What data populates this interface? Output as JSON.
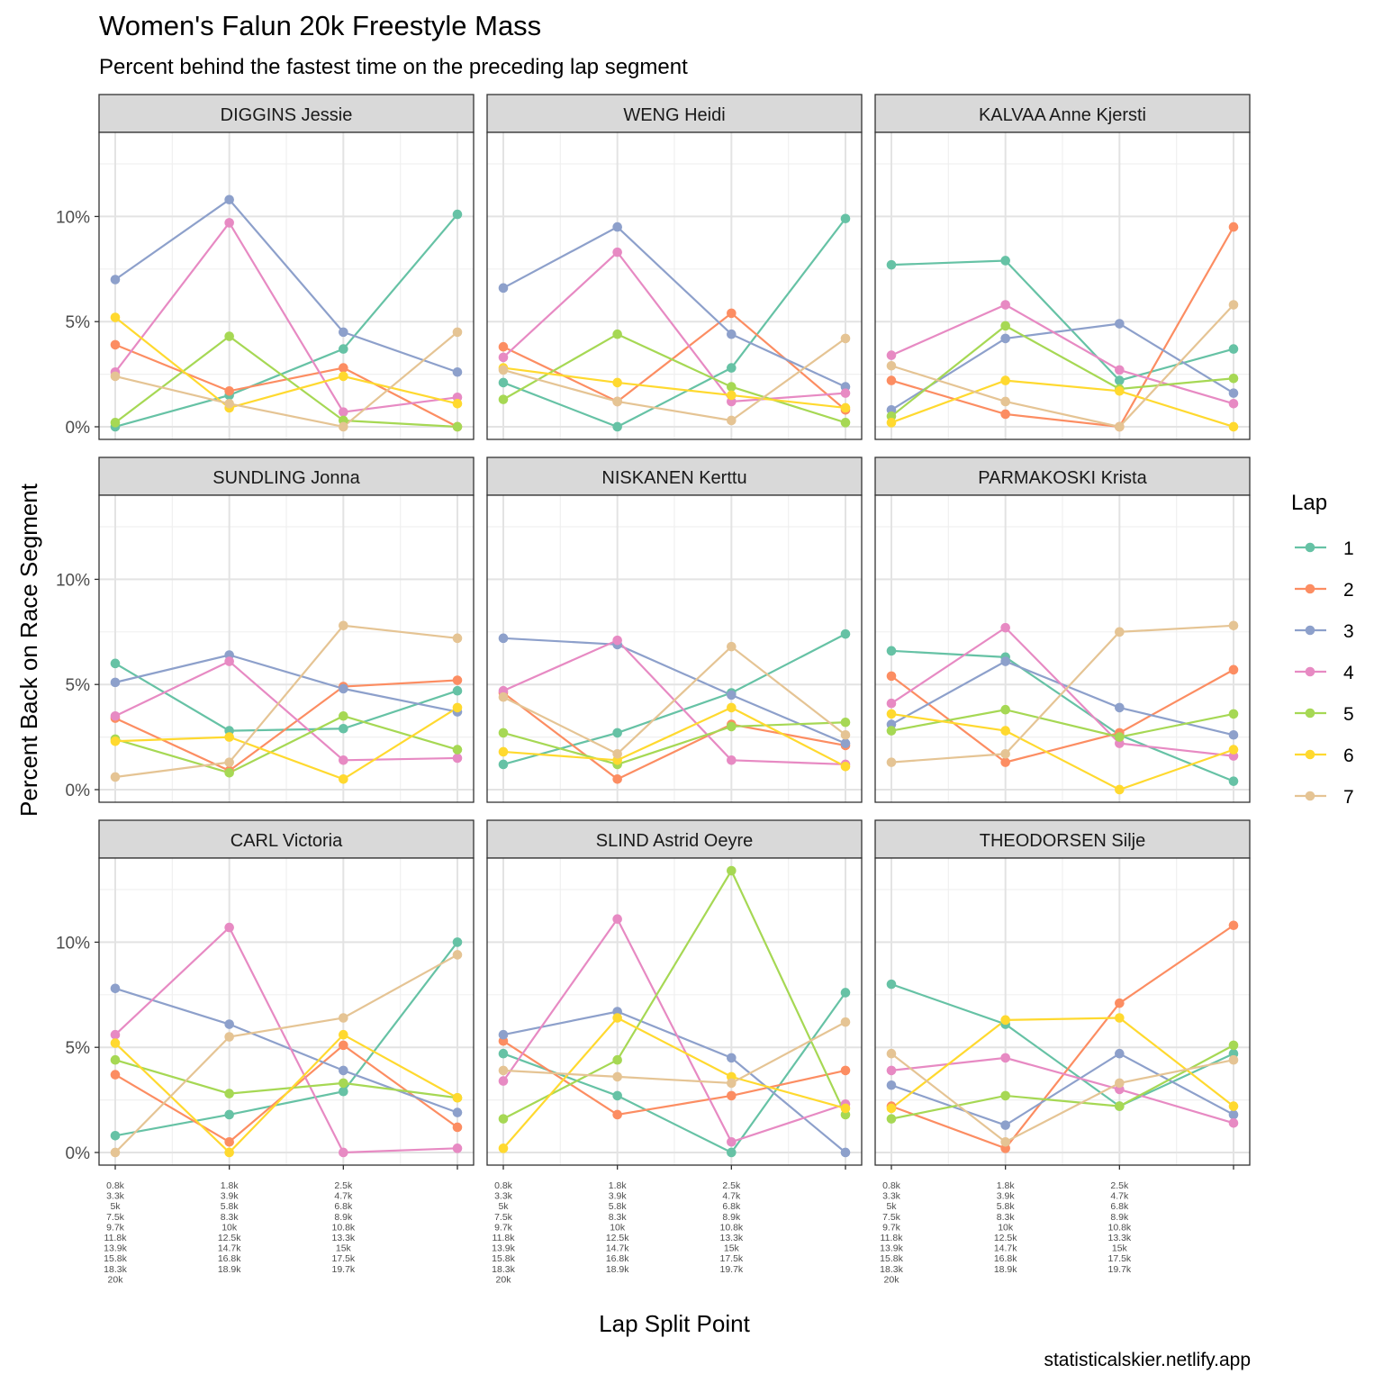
{
  "title": "Women's Falun 20k Freestyle Mass",
  "subtitle": "Percent behind the fastest time on the preceding lap segment",
  "xlabel": "Lap Split Point",
  "ylabel": "Percent Back on Race Segment",
  "caption": "statisticalskier.netlify.app",
  "legend_title": "Lap",
  "colors": {
    "1": "#66c2a5",
    "2": "#fc8d62",
    "3": "#8da0cb",
    "4": "#e78ac3",
    "5": "#a6d854",
    "6": "#ffd92f",
    "7": "#e5c494"
  },
  "chart_data": {
    "type": "line",
    "facets": "wrap 3x3",
    "laps": [
      "1",
      "2",
      "3",
      "4",
      "5",
      "6",
      "7"
    ],
    "y_ticks": [
      "0%",
      "5%",
      "10%"
    ],
    "y_tick_values": [
      0,
      5,
      10
    ],
    "ylim": [
      -0.6,
      14.0
    ],
    "x_points": [
      1,
      2,
      3,
      4
    ],
    "x_tick_labels": [
      [
        "0.8k",
        "3.3k",
        "5k",
        "7.5k",
        "9.7k",
        "11.8k",
        "13.9k",
        "15.8k",
        "18.3k",
        "20k"
      ],
      [
        "1.8k",
        "3.9k",
        "5.8k",
        "8.3k",
        "10k",
        "12.5k",
        "14.7k",
        "16.8k",
        "18.9k"
      ],
      [
        "2.5k",
        "4.7k",
        "6.8k",
        "8.9k",
        "10.8k",
        "13.3k",
        "15k",
        "17.5k",
        "19.7k"
      ]
    ],
    "panels": [
      {
        "name": "DIGGINS Jessie",
        "series": {
          "1": [
            0.0,
            1.5,
            3.7,
            10.1
          ],
          "2": [
            3.9,
            1.7,
            2.8,
            0.0
          ],
          "3": [
            7.0,
            10.8,
            4.5,
            2.6
          ],
          "4": [
            2.6,
            9.7,
            0.7,
            1.4
          ],
          "5": [
            0.2,
            4.3,
            0.3,
            0.0
          ],
          "6": [
            5.2,
            0.9,
            2.4,
            1.1
          ],
          "7": [
            2.4,
            1.1,
            0.0,
            4.5
          ]
        }
      },
      {
        "name": "WENG Heidi",
        "series": {
          "1": [
            2.1,
            0.0,
            2.8,
            9.9
          ],
          "2": [
            3.8,
            1.2,
            5.4,
            0.8
          ],
          "3": [
            6.6,
            9.5,
            4.4,
            1.9
          ],
          "4": [
            3.3,
            8.3,
            1.2,
            1.6
          ],
          "5": [
            1.3,
            4.4,
            1.9,
            0.2
          ],
          "6": [
            2.8,
            2.1,
            1.5,
            0.9
          ],
          "7": [
            2.7,
            1.2,
            0.3,
            4.2
          ]
        }
      },
      {
        "name": "KALVAA Anne Kjersti",
        "series": {
          "1": [
            7.7,
            7.9,
            2.2,
            3.7
          ],
          "2": [
            2.2,
            0.6,
            0.0,
            9.5
          ],
          "3": [
            0.8,
            4.2,
            4.9,
            1.6
          ],
          "4": [
            3.4,
            5.8,
            2.7,
            1.1
          ],
          "5": [
            0.5,
            4.8,
            1.8,
            2.3
          ],
          "6": [
            0.2,
            2.2,
            1.7,
            0.0
          ],
          "7": [
            2.9,
            1.2,
            0.0,
            5.8
          ]
        }
      },
      {
        "name": "SUNDLING Jonna",
        "series": {
          "1": [
            6.0,
            2.8,
            2.9,
            4.7
          ],
          "2": [
            3.4,
            0.9,
            4.9,
            5.2
          ],
          "3": [
            5.1,
            6.4,
            4.8,
            3.7
          ],
          "4": [
            3.5,
            6.1,
            1.4,
            1.5
          ],
          "5": [
            2.4,
            0.8,
            3.5,
            1.9
          ],
          "6": [
            2.3,
            2.5,
            0.5,
            3.9
          ],
          "7": [
            0.6,
            1.3,
            7.8,
            7.2
          ]
        }
      },
      {
        "name": "NISKANEN Kerttu",
        "series": {
          "1": [
            1.2,
            2.7,
            4.6,
            7.4
          ],
          "2": [
            4.6,
            0.5,
            3.1,
            2.1
          ],
          "3": [
            7.2,
            6.9,
            4.5,
            2.2
          ],
          "4": [
            4.7,
            7.1,
            1.4,
            1.2
          ],
          "5": [
            2.7,
            1.2,
            3.0,
            3.2
          ],
          "6": [
            1.8,
            1.4,
            3.9,
            1.1
          ],
          "7": [
            4.4,
            1.7,
            6.8,
            2.6
          ]
        }
      },
      {
        "name": "PARMAKOSKI Krista",
        "series": {
          "1": [
            6.6,
            6.3,
            2.6,
            0.4
          ],
          "2": [
            5.4,
            1.3,
            2.7,
            5.7
          ],
          "3": [
            3.1,
            6.1,
            3.9,
            2.6
          ],
          "4": [
            4.1,
            7.7,
            2.2,
            1.6
          ],
          "5": [
            2.8,
            3.8,
            2.5,
            3.6
          ],
          "6": [
            3.6,
            2.8,
            0.0,
            1.9
          ],
          "7": [
            1.3,
            1.7,
            7.5,
            7.8
          ]
        }
      },
      {
        "name": "CARL Victoria",
        "series": {
          "1": [
            0.8,
            1.8,
            2.9,
            10.0
          ],
          "2": [
            3.7,
            0.5,
            5.1,
            1.2
          ],
          "3": [
            7.8,
            6.1,
            3.9,
            1.9
          ],
          "4": [
            5.6,
            10.7,
            0.0,
            0.2
          ],
          "5": [
            4.4,
            2.8,
            3.3,
            2.6
          ],
          "6": [
            5.2,
            0.0,
            5.6,
            2.6
          ],
          "7": [
            0.0,
            5.5,
            6.4,
            9.4
          ]
        }
      },
      {
        "name": "SLIND Astrid Oeyre",
        "series": {
          "1": [
            4.7,
            2.7,
            0.0,
            7.6
          ],
          "2": [
            5.3,
            1.8,
            2.7,
            3.9
          ],
          "3": [
            5.6,
            6.7,
            4.5,
            0.0
          ],
          "4": [
            3.4,
            11.1,
            0.5,
            2.3
          ],
          "5": [
            1.6,
            4.4,
            13.4,
            1.8
          ],
          "6": [
            0.2,
            6.4,
            3.6,
            2.1
          ],
          "7": [
            3.9,
            3.6,
            3.3,
            6.2
          ]
        }
      },
      {
        "name": "THEODORSEN Silje",
        "series": {
          "1": [
            8.0,
            6.1,
            2.2,
            4.7
          ],
          "2": [
            2.2,
            0.2,
            7.1,
            10.8
          ],
          "3": [
            3.2,
            1.3,
            4.7,
            1.8
          ],
          "4": [
            3.9,
            4.5,
            3.0,
            1.4
          ],
          "5": [
            1.6,
            2.7,
            2.2,
            5.1
          ],
          "6": [
            2.1,
            6.3,
            6.4,
            2.2
          ],
          "7": [
            4.7,
            0.5,
            3.3,
            4.4
          ]
        }
      }
    ]
  }
}
